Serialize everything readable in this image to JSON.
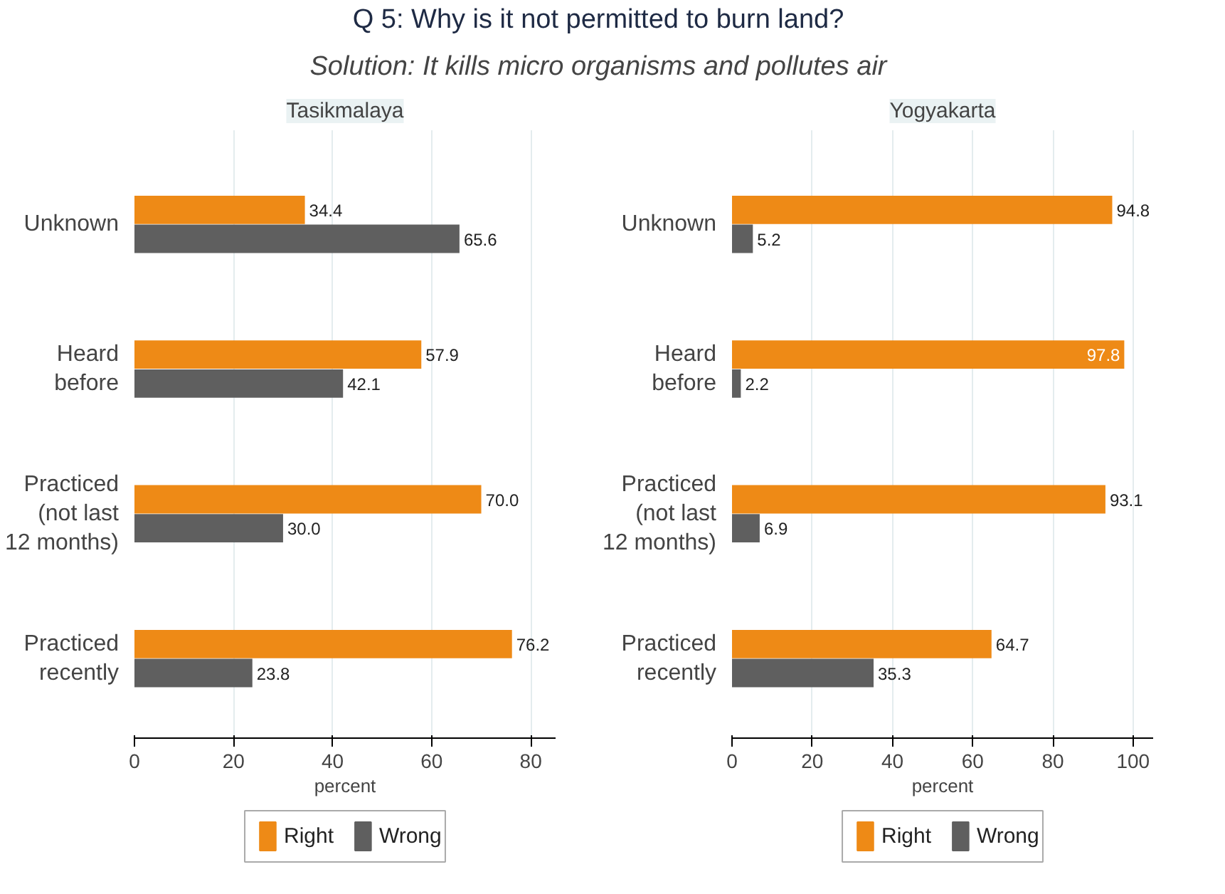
{
  "chart_data": [
    {
      "type": "other",
      "title": "Q 5: Why is it not permitted to burn land?",
      "subtitle": "Solution: It kills micro organisms and pollutes air"
    },
    {
      "type": "bar",
      "orientation": "horizontal",
      "title": "Tasikmalaya",
      "xlabel": "percent",
      "categories": [
        "Unknown",
        "Heard\nbefore",
        "Practiced\n(not last\n12 months)",
        "Practiced\nrecently"
      ],
      "series": [
        {
          "name": "Right",
          "color": "#ee8a16",
          "values": [
            34.4,
            57.9,
            70.0,
            76.2
          ],
          "value_labels": [
            "34.4",
            "57.9",
            "70.0",
            "76.2"
          ]
        },
        {
          "name": "Wrong",
          "color": "#5f5f5f",
          "values": [
            65.6,
            42.1,
            30.0,
            23.8
          ],
          "value_labels": [
            "65.6",
            "42.1",
            "30.0",
            "23.8"
          ]
        }
      ],
      "xlim": [
        0,
        85
      ],
      "xticks": [
        0,
        20,
        40,
        60,
        80
      ],
      "grid": "x",
      "legend": "bottom"
    },
    {
      "type": "bar",
      "orientation": "horizontal",
      "title": "Yogyakarta",
      "xlabel": "percent",
      "categories": [
        "Unknown",
        "Heard\nbefore",
        "Practiced\n(not last\n12 months)",
        "Practiced\nrecently"
      ],
      "series": [
        {
          "name": "Right",
          "color": "#ee8a16",
          "values": [
            94.8,
            97.8,
            93.1,
            64.7
          ],
          "value_labels": [
            "94.8",
            "97.8",
            "93.1",
            "64.7"
          ]
        },
        {
          "name": "Wrong",
          "color": "#5f5f5f",
          "values": [
            5.2,
            2.2,
            6.9,
            35.3
          ],
          "value_labels": [
            "5.2",
            "2.2",
            "6.9",
            "35.3"
          ]
        }
      ],
      "xlim": [
        0,
        105
      ],
      "xticks": [
        0,
        20,
        40,
        60,
        80,
        100
      ],
      "grid": "x",
      "legend": "bottom"
    }
  ]
}
